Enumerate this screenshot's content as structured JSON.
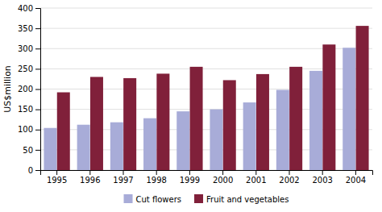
{
  "chart_data": {
    "type": "bar",
    "categories": [
      "1995",
      "1996",
      "1997",
      "1998",
      "1999",
      "2000",
      "2001",
      "2002",
      "2003",
      "2004"
    ],
    "series": [
      {
        "name": "Cut flowers",
        "color": "#a8acd8",
        "values": [
          104,
          112,
          118,
          128,
          145,
          150,
          167,
          198,
          245,
          302
        ]
      },
      {
        "name": "Fruit and vegetables",
        "color": "#80203a",
        "values": [
          192,
          230,
          227,
          238,
          255,
          222,
          237,
          255,
          310,
          356
        ]
      }
    ],
    "ylabel": "US$million",
    "ylim": [
      0,
      400
    ],
    "yticks": [
      0,
      50,
      100,
      150,
      200,
      250,
      300,
      350,
      400
    ],
    "grid": true,
    "legend": "bottom"
  }
}
